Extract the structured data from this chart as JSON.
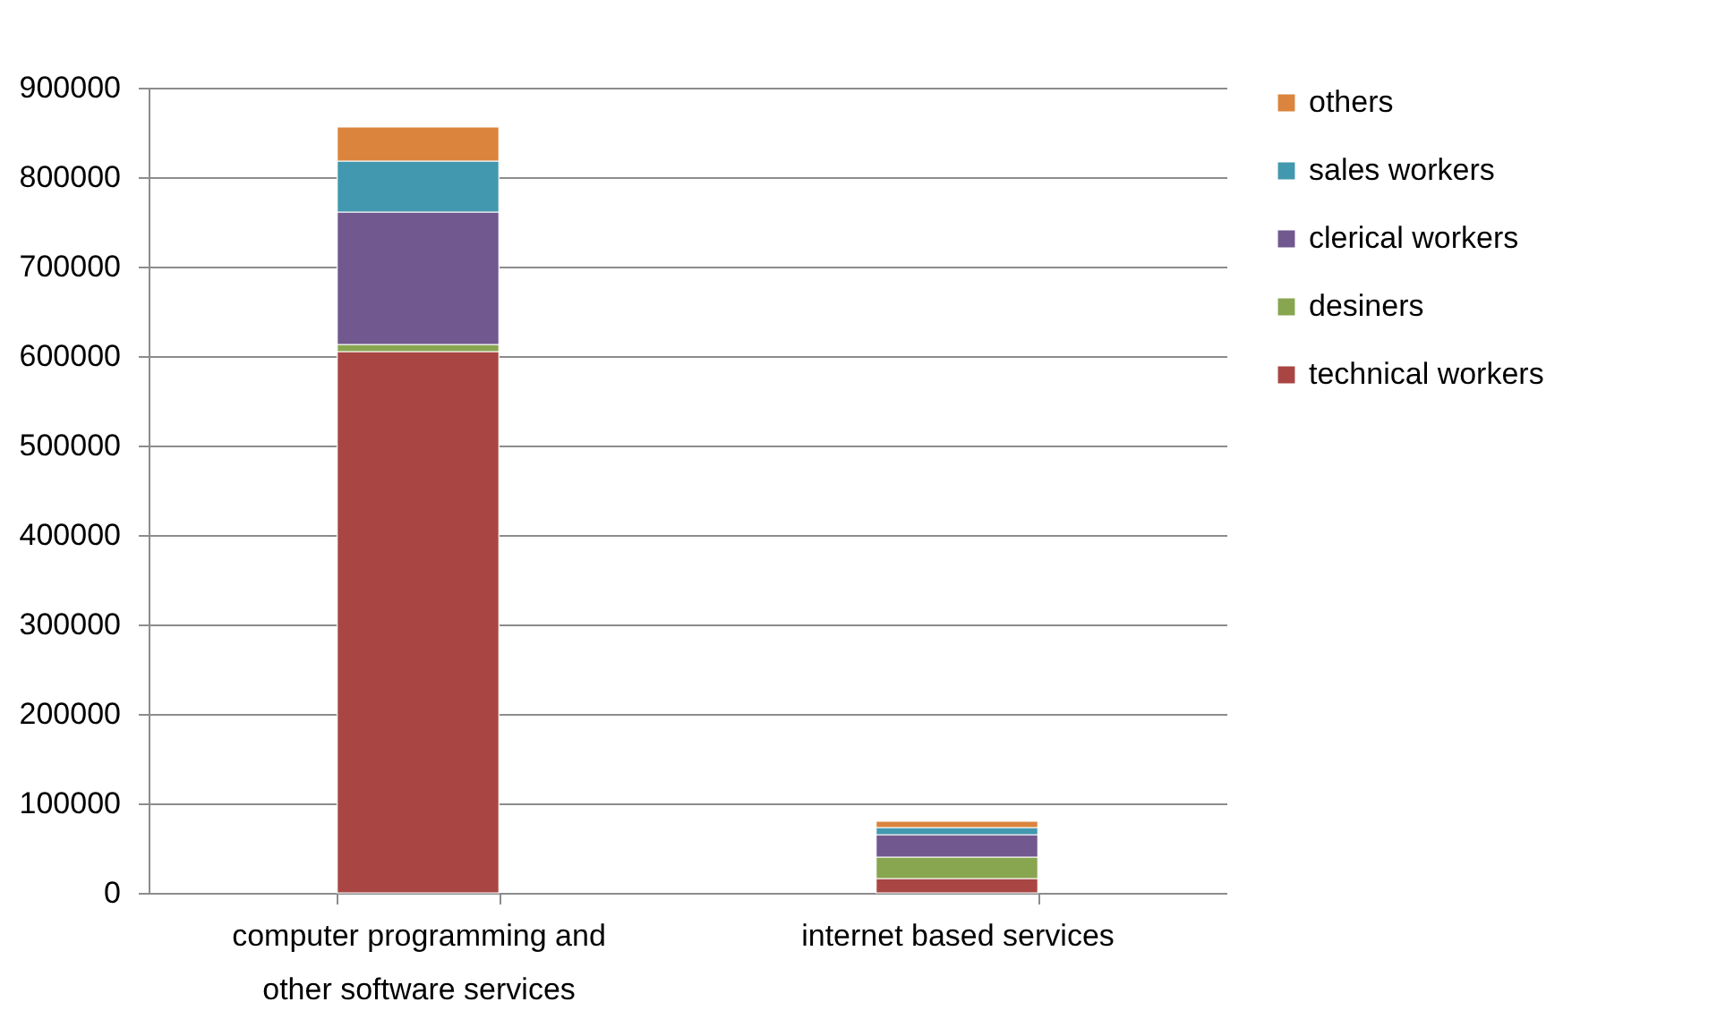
{
  "chart_data": {
    "type": "bar",
    "stacked": true,
    "categories": [
      "computer programming and other software services",
      "internet based services"
    ],
    "series": [
      {
        "name": "technical workers",
        "color": "#a94643",
        "values": [
          605000,
          16000
        ]
      },
      {
        "name": "desiners",
        "color": "#88a550",
        "values": [
          8000,
          24000
        ]
      },
      {
        "name": "clerical workers",
        "color": "#71588f",
        "values": [
          148000,
          25000
        ]
      },
      {
        "name": "sales workers",
        "color": "#4298af",
        "values": [
          57000,
          8000
        ]
      },
      {
        "name": "others",
        "color": "#db843d",
        "values": [
          38000,
          7000
        ]
      }
    ],
    "ylim": [
      0,
      900000
    ],
    "yticks": [
      0,
      100000,
      200000,
      300000,
      400000,
      500000,
      600000,
      700000,
      800000,
      900000
    ],
    "grid": "y",
    "legend": "right"
  }
}
